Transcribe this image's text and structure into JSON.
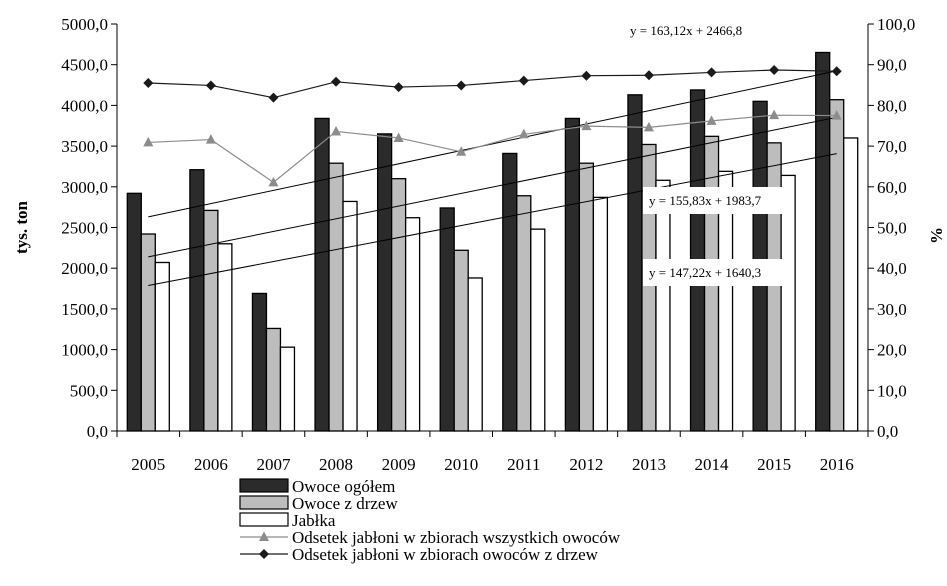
{
  "chart_data": {
    "type": "bar",
    "categories": [
      "2005",
      "2006",
      "2007",
      "2008",
      "2009",
      "2010",
      "2011",
      "2012",
      "2013",
      "2014",
      "2015",
      "2016"
    ],
    "series": [
      {
        "name": "Owoce ogółem",
        "kind": "bar",
        "axis": "left",
        "color": "#2b2b2b",
        "values": [
          2920,
          3210,
          1690,
          3840,
          3650,
          2740,
          3410,
          3840,
          4130,
          4190,
          4050,
          4650
        ]
      },
      {
        "name": "Owoce z drzew",
        "kind": "bar",
        "axis": "left",
        "color": "#bdbdbd",
        "values": [
          2420,
          2710,
          1260,
          3290,
          3100,
          2220,
          2890,
          3290,
          3520,
          3620,
          3540,
          4070
        ]
      },
      {
        "name": "Jabłka",
        "kind": "bar",
        "axis": "left",
        "color": "#ffffff",
        "values": [
          2070,
          2300,
          1030,
          2820,
          2620,
          1880,
          2480,
          2870,
          3080,
          3190,
          3140,
          3600
        ]
      },
      {
        "name": "Odsetek jabłoni w zbiorach wszystkich owoców",
        "kind": "line",
        "axis": "right",
        "color": "#8c8c8c",
        "marker": "triangle",
        "values": [
          70.9,
          71.6,
          61.1,
          73.6,
          72.0,
          68.6,
          72.9,
          74.9,
          74.6,
          76.2,
          77.6,
          77.5
        ]
      },
      {
        "name": "Odsetek jabłoni w zbiorach owoców z drzew",
        "kind": "line",
        "axis": "right",
        "color": "#1a1a1a",
        "marker": "diamond",
        "values": [
          85.5,
          84.9,
          81.9,
          85.8,
          84.5,
          84.9,
          86.1,
          87.3,
          87.4,
          88.1,
          88.7,
          88.4
        ]
      }
    ],
    "trendlines": [
      {
        "label": "y = 163,12x + 2466,8",
        "slope": 163.12,
        "intercept": 2466.8
      },
      {
        "label": "y = 155,83x + 1983,7",
        "slope": 155.83,
        "intercept": 1983.7
      },
      {
        "label": "y = 147,22x + 1640,3",
        "slope": 147.22,
        "intercept": 1640.3
      }
    ],
    "ylabel": "tys. ton",
    "y2label": "%",
    "ylim": [
      0,
      5000
    ],
    "y2lim": [
      0,
      100
    ],
    "yticks": [
      "0,0",
      "500,0",
      "1000,0",
      "1500,0",
      "2000,0",
      "2500,0",
      "3000,0",
      "3500,0",
      "4000,0",
      "4500,0",
      "5000,0"
    ],
    "y2ticks": [
      "0,0",
      "10,0",
      "20,0",
      "30,0",
      "40,0",
      "50,0",
      "60,0",
      "70,0",
      "80,0",
      "90,0",
      "100,0"
    ],
    "grid": false,
    "legend_position": "bottom"
  }
}
